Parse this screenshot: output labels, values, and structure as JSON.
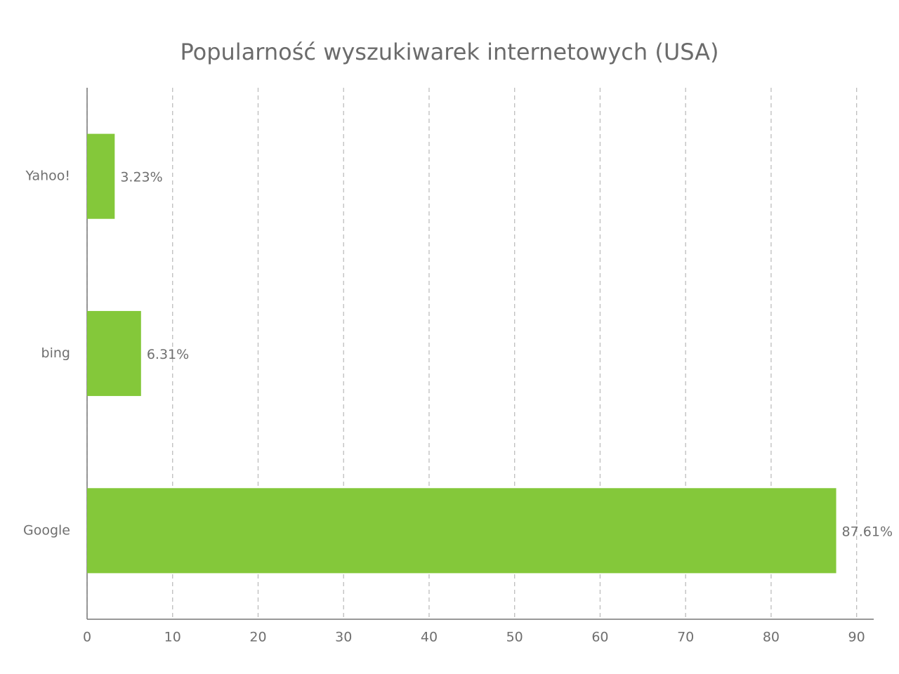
{
  "chart_data": {
    "type": "hbar",
    "title": "Popularność wyszukiwarek internetowych (USA)",
    "categories": [
      "Yahoo!",
      "bing",
      "Google"
    ],
    "values": [
      3.23,
      6.31,
      87.61
    ],
    "value_labels": [
      "3.23%",
      "6.31%",
      "87.61%"
    ],
    "color": "#84c83a",
    "xlim": [
      0,
      92
    ],
    "xticks": [
      0,
      10,
      20,
      30,
      40,
      50,
      60,
      70,
      80,
      90
    ],
    "grid": true
  }
}
